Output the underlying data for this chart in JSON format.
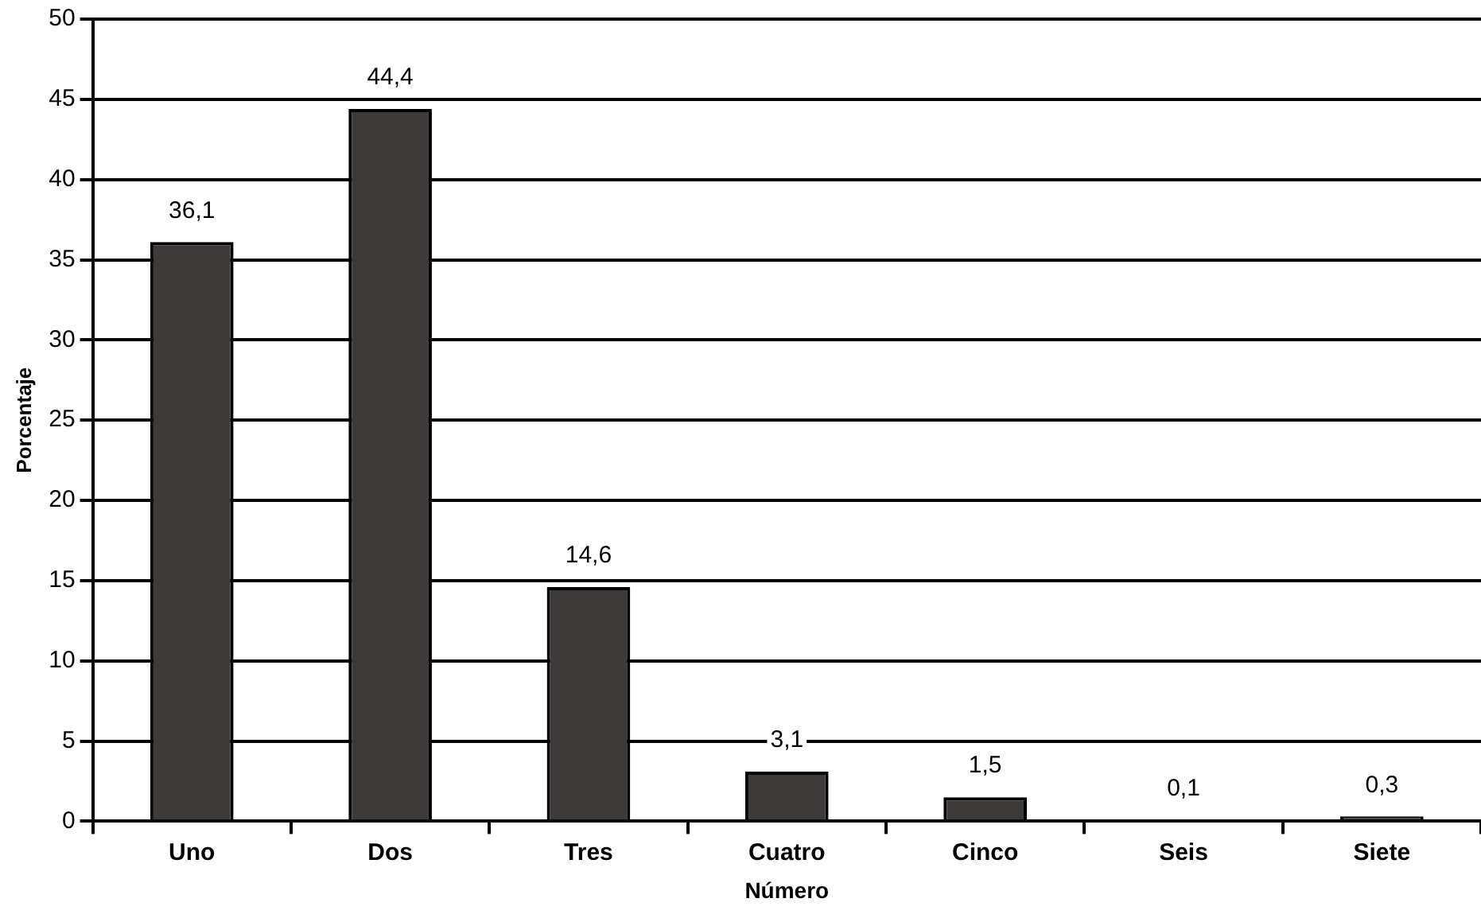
{
  "chart_data": {
    "type": "bar",
    "xlabel": "Número",
    "ylabel": "Porcentaje",
    "categories": [
      "Uno",
      "Dos",
      "Tres",
      "Cuatro",
      "Cinco",
      "Seis",
      "Siete"
    ],
    "values": [
      36.1,
      44.4,
      14.6,
      3.1,
      1.5,
      0.1,
      0.3
    ],
    "value_labels": [
      "36,1",
      "44,4",
      "14,6",
      "3,1",
      "1,5",
      "0,1",
      "0,3"
    ],
    "color": "#3e3a3a",
    "ylim": [
      0,
      50
    ],
    "yticks": [
      0,
      5,
      10,
      15,
      20,
      25,
      30,
      35,
      40,
      45,
      50
    ],
    "grid": "y",
    "legend": false
  }
}
